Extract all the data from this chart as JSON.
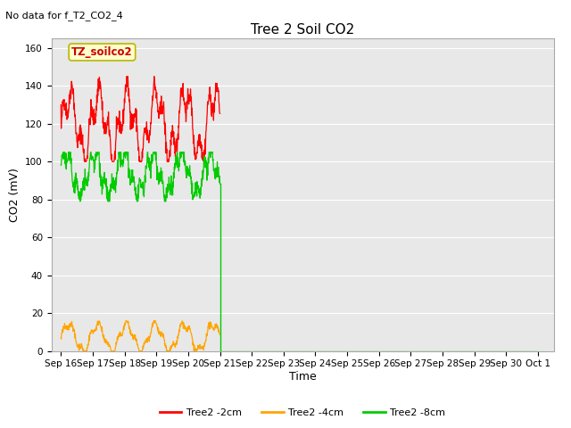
{
  "title": "Tree 2 Soil CO2",
  "top_left_note": "No data for f_T2_CO2_4",
  "ylabel": "CO2 (mV)",
  "xlabel": "Time",
  "ylim": [
    0,
    165
  ],
  "background_color": "#e8e8e8",
  "plot_bg_color": "#e8e8e8",
  "fig_bg_color": "#ffffff",
  "legend_label": "TZ_soilco2",
  "legend_box_color": "#ffffcc",
  "legend_box_edge": "#b8b800",
  "legend_text_color": "#cc0000",
  "series": {
    "red": {
      "label": "Tree2 -2cm",
      "color": "#ff0000"
    },
    "orange": {
      "label": "Tree2 -4cm",
      "color": "#ffa500"
    },
    "green": {
      "label": "Tree2 -8cm",
      "color": "#00cc00"
    }
  },
  "xtick_labels": [
    "Sep 16",
    "Sep 17",
    "Sep 18",
    "Sep 19",
    "Sep 20",
    "Sep 21",
    "Sep 22",
    "Sep 23",
    "Sep 24",
    "Sep 25",
    "Sep 26",
    "Sep 27",
    "Sep 28",
    "Sep 29",
    "Sep 30",
    "Oct 1"
  ],
  "xtick_positions": [
    0,
    1,
    2,
    3,
    4,
    5,
    6,
    7,
    8,
    9,
    10,
    11,
    12,
    13,
    14,
    15
  ],
  "xlim": [
    -0.3,
    15.5
  ],
  "ytick_positions": [
    0,
    20,
    40,
    60,
    80,
    100,
    120,
    140,
    160
  ],
  "ytick_labels": [
    "0",
    "20",
    "40",
    "60",
    "80",
    "100",
    "120",
    "140",
    "160"
  ],
  "grid_color": "#ffffff",
  "title_fontsize": 11,
  "axis_label_fontsize": 9,
  "tick_fontsize": 7.5,
  "note_fontsize": 8,
  "legend_fontsize": 8,
  "data_end_day": 5.5
}
